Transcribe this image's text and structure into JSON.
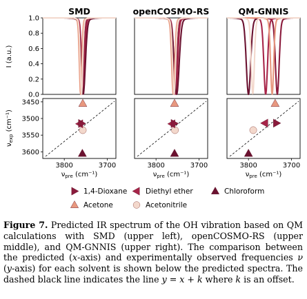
{
  "figure": {
    "colors": {
      "dioxane": "#8a1b3c",
      "diethyl_ether": "#a72549",
      "chloroform": "#6b1230",
      "acetone": "#e8987f",
      "acetonitrile": "#f3d8cc",
      "axis": "#000000",
      "diagonal": "#000000"
    },
    "panel_titles": [
      "SMD",
      "openCOSMO-RS",
      "QM-GNNIS"
    ],
    "y_axis_label_top": "I (a.u.)",
    "y_axis_label_bottom": "ν",
    "y_axis_label_bottom_sub": "exp",
    "y_axis_label_bottom_unit": " (cm⁻¹)",
    "x_axis_label": "ν",
    "x_axis_label_sub": "pre",
    "x_axis_label_unit": " (cm⁻¹)",
    "top_yticks": [
      "1.0",
      "0.8",
      "0.6",
      "0.4",
      "0.2",
      "0.0"
    ],
    "bottom_yticks": [
      "3450",
      "3500",
      "3550",
      "3600"
    ],
    "xticks": [
      "3800",
      "3700"
    ],
    "legend": [
      {
        "label": "1,4-Dioxane",
        "marker": "triangle-right",
        "color_key": "dioxane"
      },
      {
        "label": "Diethyl ether",
        "marker": "triangle-left",
        "color_key": "diethyl_ether"
      },
      {
        "label": "Chloroform",
        "marker": "triangle-up",
        "color_key": "chloroform"
      },
      {
        "label": "Acetone",
        "marker": "triangle-up",
        "color_key": "acetone"
      },
      {
        "label": "Acetonitrile",
        "marker": "circle",
        "color_key": "acetonitrile"
      }
    ]
  },
  "chart_data": [
    {
      "type": "line",
      "panel": "SMD",
      "ylabel": "I (a.u.)",
      "ylim": [
        0,
        1.0
      ],
      "xlim": [
        3850,
        3680
      ],
      "x_reversed": true,
      "series": [
        {
          "solvent": "1,4-Dioxane",
          "center": 3758,
          "width": 5
        },
        {
          "solvent": "Diethyl ether",
          "center": 3756,
          "width": 5
        },
        {
          "solvent": "Chloroform",
          "center": 3756,
          "width": 7
        },
        {
          "solvent": "Acetone",
          "center": 3762,
          "width": 4
        },
        {
          "solvent": "Acetonitrile",
          "center": 3760,
          "width": 4
        }
      ]
    },
    {
      "type": "line",
      "panel": "openCOSMO-RS",
      "ylim": [
        0,
        1.0
      ],
      "xlim": [
        3850,
        3680
      ],
      "x_reversed": true,
      "series": [
        {
          "solvent": "1,4-Dioxane",
          "center": 3756,
          "width": 6
        },
        {
          "solvent": "Diethyl ether",
          "center": 3754,
          "width": 6
        },
        {
          "solvent": "Chloroform",
          "center": 3752,
          "width": 8
        },
        {
          "solvent": "Acetone",
          "center": 3760,
          "width": 5
        },
        {
          "solvent": "Acetonitrile",
          "center": 3758,
          "width": 5
        }
      ]
    },
    {
      "type": "line",
      "panel": "QM-GNNIS",
      "ylim": [
        0,
        1.0
      ],
      "xlim": [
        3850,
        3680
      ],
      "x_reversed": true,
      "series": [
        {
          "solvent": "1,4-Dioxane",
          "center": 3733,
          "width": 6
        },
        {
          "solvent": "Diethyl ether",
          "center": 3760,
          "width": 6
        },
        {
          "solvent": "Chloroform",
          "center": 3800,
          "width": 7
        },
        {
          "solvent": "Acetone",
          "center": 3745,
          "width": 5
        },
        {
          "solvent": "Acetonitrile",
          "center": 3790,
          "width": 5
        }
      ]
    },
    {
      "type": "scatter",
      "panel": "SMD",
      "xlabel": "ν_pre (cm⁻¹)",
      "ylabel": "ν_exp (cm⁻¹)",
      "xlim": [
        3850,
        3680
      ],
      "ylim": [
        3620,
        3440
      ],
      "points": [
        {
          "solvent": "1,4-Dioxane",
          "x": 3760,
          "y": 3515
        },
        {
          "solvent": "Diethyl ether",
          "x": 3764,
          "y": 3516
        },
        {
          "solvent": "Chloroform",
          "x": 3758,
          "y": 3605
        },
        {
          "solvent": "Acetone",
          "x": 3757,
          "y": 3455
        },
        {
          "solvent": "Acetonitrile",
          "x": 3757,
          "y": 3535
        }
      ]
    },
    {
      "type": "scatter",
      "panel": "openCOSMO-RS",
      "xlim": [
        3850,
        3680
      ],
      "ylim": [
        3620,
        3440
      ],
      "points": [
        {
          "solvent": "1,4-Dioxane",
          "x": 3758,
          "y": 3515
        },
        {
          "solvent": "Diethyl ether",
          "x": 3763,
          "y": 3516
        },
        {
          "solvent": "Chloroform",
          "x": 3757,
          "y": 3605
        },
        {
          "solvent": "Acetone",
          "x": 3757,
          "y": 3455
        },
        {
          "solvent": "Acetonitrile",
          "x": 3756,
          "y": 3535
        }
      ]
    },
    {
      "type": "scatter",
      "panel": "QM-GNNIS",
      "xlim": [
        3850,
        3680
      ],
      "ylim": [
        3620,
        3440
      ],
      "points": [
        {
          "solvent": "1,4-Dioxane",
          "x": 3735,
          "y": 3514
        },
        {
          "solvent": "Diethyl ether",
          "x": 3762,
          "y": 3514
        },
        {
          "solvent": "Chloroform",
          "x": 3800,
          "y": 3605
        },
        {
          "solvent": "Acetone",
          "x": 3738,
          "y": 3455
        },
        {
          "solvent": "Acetonitrile",
          "x": 3789,
          "y": 3535
        }
      ]
    }
  ],
  "caption": {
    "label": "Figure 7.",
    "p1": " Predicted IR spectrum of the OH vibration based on QM calculations with SMD (upper left), openCOSMO-RS (upper middle), and QM-GNNIS (upper right). The comparison between the predicted (",
    "i1": "x",
    "p2": "-axis) and experimentally observed frequencies ",
    "i2": "ν",
    "p3": " (",
    "i3": "y",
    "p4": "-axis) for each solvent is shown below the predicted spectra. The dashed black line indicates the line ",
    "i4": "y",
    "p5": " = ",
    "i5": "x",
    "p6": " + ",
    "i6": "k",
    "p7": " where ",
    "i7": "k",
    "p8": " is an offset."
  }
}
